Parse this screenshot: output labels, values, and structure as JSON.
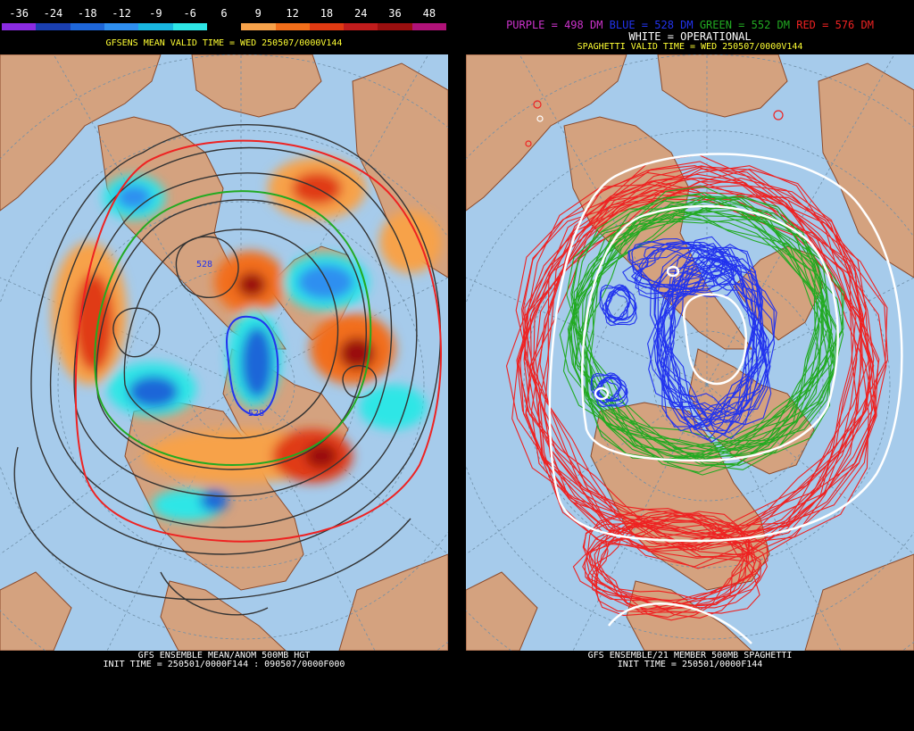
{
  "left_panel": {
    "colorbar": {
      "labels": [
        "-36",
        "-24",
        "-18",
        "-12",
        "-9",
        "-6",
        "6",
        "9",
        "12",
        "18",
        "24",
        "36",
        "48"
      ],
      "colors": [
        "#8a2be2",
        "#1a3fb0",
        "#1e66d8",
        "#2f8ff0",
        "#19b6e0",
        "#2ee6e6",
        "#000000",
        "#f7a24a",
        "#f26e1a",
        "#e03a12",
        "#c01c1c",
        "#9a0f0f",
        "#b01278"
      ]
    },
    "title": "GFSENS MEAN VALID TIME = WED 250507/0000V144",
    "map_labels": [
      "528",
      "528"
    ],
    "bottom_line1": "GFS ENSEMBLE MEAN/ANOM 500MB HGT",
    "bottom_line2": "INIT TIME = 250501/0000F144 : 090507/0000F000"
  },
  "right_panel": {
    "legend": [
      {
        "text": "PURPLE = 498 DM",
        "color": "#cc33cc"
      },
      {
        "text": "BLUE = 528 DM",
        "color": "#2233ee"
      },
      {
        "text": "GREEN = 552 DM",
        "color": "#22aa22"
      },
      {
        "text": "RED = 576 DM",
        "color": "#ee2222"
      }
    ],
    "legend_line2": "WHITE = OPERATIONAL",
    "title": "SPAGHETTI VALID TIME = WED 250507/0000V144",
    "bottom_line1": "GFS ENSEMBLE/21 MEMBER 500MB SPAGHETTI",
    "bottom_line2": "INIT TIME = 250501/0000F144"
  },
  "colors": {
    "ocean": "#a6cbeb",
    "land": "#d4a27f",
    "border": "#8b4a2b",
    "grid": "#6f8fa8"
  }
}
